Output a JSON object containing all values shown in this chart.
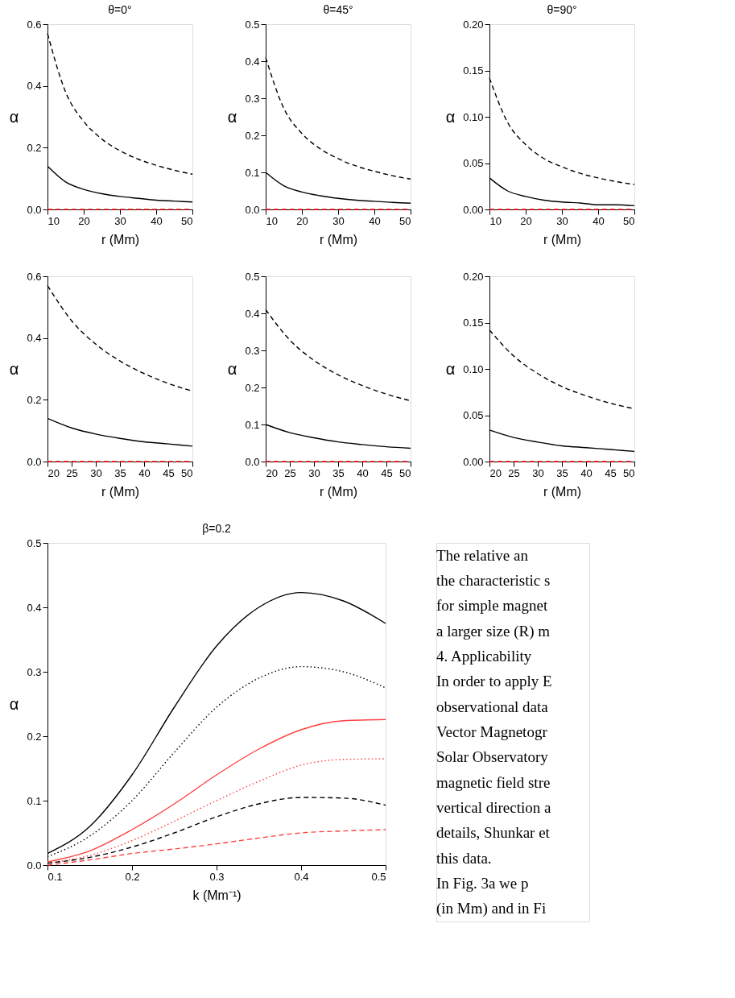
{
  "chart_data": [
    {
      "type": "line",
      "title": "θ=0°",
      "xlabel": "r (Mm)",
      "ylabel": "α",
      "x": [
        10,
        15,
        20,
        25,
        30,
        35,
        40,
        45,
        50
      ],
      "xlim": [
        10,
        50
      ],
      "xticks": [
        10,
        20,
        30,
        40,
        50
      ],
      "ylim": [
        0,
        0.6
      ],
      "yticks": [
        {
          "value": 0,
          "label": "0.0"
        },
        0.2,
        0.4,
        0.6
      ],
      "grid": false,
      "legend": false,
      "series": [
        {
          "color": "#000000",
          "line_style": "dashed",
          "values": [
            0.57,
            0.38,
            0.285,
            0.228,
            0.19,
            0.163,
            0.143,
            0.127,
            0.114
          ]
        },
        {
          "color": "#000000",
          "line_style": "solid",
          "values": [
            0.14,
            0.089,
            0.065,
            0.051,
            0.042,
            0.036,
            0.03,
            0.027,
            0.024
          ]
        },
        {
          "color": "#ff0000",
          "line_style": "dashed",
          "values": [
            0,
            0,
            0,
            0,
            0,
            0,
            0,
            0,
            0
          ]
        }
      ]
    },
    {
      "type": "line",
      "title": "θ=45°",
      "xlabel": "r (Mm)",
      "ylabel": "α",
      "x": [
        10,
        15,
        20,
        25,
        30,
        35,
        40,
        45,
        50
      ],
      "xlim": [
        10,
        50
      ],
      "xticks": [
        10,
        20,
        30,
        40,
        50
      ],
      "ylim": [
        0,
        0.5
      ],
      "yticks": [
        {
          "value": 0,
          "label": "0.0"
        },
        0.1,
        0.2,
        0.3,
        0.4,
        0.5
      ],
      "grid": false,
      "legend": false,
      "series": [
        {
          "color": "#000000",
          "line_style": "dashed",
          "values": [
            0.41,
            0.273,
            0.205,
            0.164,
            0.137,
            0.117,
            0.103,
            0.091,
            0.082
          ]
        },
        {
          "color": "#000000",
          "line_style": "solid",
          "values": [
            0.1,
            0.064,
            0.047,
            0.037,
            0.03,
            0.025,
            0.022,
            0.019,
            0.017
          ]
        },
        {
          "color": "#ff0000",
          "line_style": "dashed",
          "values": [
            0,
            0,
            0,
            0,
            0,
            0,
            0,
            0,
            0
          ]
        }
      ]
    },
    {
      "type": "line",
      "title": "θ=90°",
      "xlabel": "r (Mm)",
      "ylabel": "α",
      "x": [
        10,
        15,
        20,
        25,
        30,
        35,
        40,
        45,
        50
      ],
      "xlim": [
        10,
        50
      ],
      "xticks": [
        10,
        20,
        30,
        40,
        50
      ],
      "ylim": [
        0,
        0.2
      ],
      "yticks": [
        {
          "value": 0,
          "label": "0.00"
        },
        0.05,
        {
          "value": 0.1,
          "label": "0.10"
        },
        0.15,
        {
          "value": 0.2,
          "label": "0.20"
        }
      ],
      "grid": false,
      "legend": false,
      "series": [
        {
          "color": "#000000",
          "line_style": "dashed",
          "values": [
            0.142,
            0.094,
            0.07,
            0.055,
            0.046,
            0.039,
            0.034,
            0.03,
            0.027
          ]
        },
        {
          "color": "#000000",
          "line_style": "solid",
          "values": [
            0.034,
            0.02,
            0.014,
            0.01,
            0.008,
            0.007,
            0.005,
            0.005,
            0.004
          ]
        },
        {
          "color": "#ff0000",
          "line_style": "dashed",
          "values": [
            0,
            0,
            0,
            0,
            0,
            0,
            0,
            0,
            0
          ]
        }
      ]
    },
    {
      "type": "line",
      "xlabel": "r (Mm)",
      "ylabel": "α",
      "x": [
        20,
        25,
        30,
        35,
        40,
        45,
        50
      ],
      "xlim": [
        20,
        50
      ],
      "xticks": [
        20,
        25,
        30,
        35,
        40,
        45,
        50
      ],
      "ylim": [
        0,
        0.6
      ],
      "yticks": [
        {
          "value": 0,
          "label": "0.0"
        },
        0.2,
        0.4,
        0.6
      ],
      "grid": false,
      "legend": false,
      "series": [
        {
          "color": "#000000",
          "line_style": "dashed",
          "values": [
            0.57,
            0.456,
            0.38,
            0.326,
            0.285,
            0.253,
            0.228
          ]
        },
        {
          "color": "#000000",
          "line_style": "solid",
          "values": [
            0.14,
            0.109,
            0.089,
            0.075,
            0.064,
            0.057,
            0.05
          ]
        },
        {
          "color": "#ff0000",
          "line_style": "dashed",
          "values": [
            0,
            0,
            0,
            0,
            0,
            0,
            0
          ]
        }
      ]
    },
    {
      "type": "line",
      "xlabel": "r (Mm)",
      "ylabel": "α",
      "x": [
        20,
        25,
        30,
        35,
        40,
        45,
        50
      ],
      "xlim": [
        20,
        50
      ],
      "xticks": [
        20,
        25,
        30,
        35,
        40,
        45,
        50
      ],
      "ylim": [
        0,
        0.5
      ],
      "yticks": [
        {
          "value": 0,
          "label": "0.0"
        },
        0.1,
        0.2,
        0.3,
        0.4,
        0.5
      ],
      "grid": false,
      "legend": false,
      "series": [
        {
          "color": "#000000",
          "line_style": "dashed",
          "values": [
            0.41,
            0.328,
            0.273,
            0.234,
            0.205,
            0.182,
            0.164
          ]
        },
        {
          "color": "#000000",
          "line_style": "solid",
          "values": [
            0.1,
            0.078,
            0.064,
            0.053,
            0.046,
            0.04,
            0.036
          ]
        },
        {
          "color": "#ff0000",
          "line_style": "dashed",
          "values": [
            0,
            0,
            0,
            0,
            0,
            0,
            0
          ]
        }
      ]
    },
    {
      "type": "line",
      "xlabel": "r (Mm)",
      "ylabel": "α",
      "x": [
        20,
        25,
        30,
        35,
        40,
        45,
        50
      ],
      "xlim": [
        20,
        50
      ],
      "xticks": [
        20,
        25,
        30,
        35,
        40,
        45,
        50
      ],
      "ylim": [
        0,
        0.2
      ],
      "yticks": [
        {
          "value": 0,
          "label": "0.00"
        },
        0.05,
        {
          "value": 0.1,
          "label": "0.10"
        },
        0.15,
        {
          "value": 0.2,
          "label": "0.20"
        }
      ],
      "grid": false,
      "legend": false,
      "series": [
        {
          "color": "#000000",
          "line_style": "dashed",
          "values": [
            0.142,
            0.114,
            0.095,
            0.081,
            0.071,
            0.063,
            0.057
          ]
        },
        {
          "color": "#000000",
          "line_style": "solid",
          "values": [
            0.034,
            0.026,
            0.021,
            0.017,
            0.015,
            0.013,
            0.011
          ]
        },
        {
          "color": "#ff0000",
          "line_style": "dashed",
          "values": [
            0,
            0,
            0,
            0,
            0,
            0,
            0
          ]
        }
      ]
    },
    {
      "type": "line",
      "title": "β=0.2",
      "xlabel": "k (Mm⁻¹)",
      "ylabel": "α",
      "x": [
        0.1,
        0.15,
        0.2,
        0.25,
        0.3,
        0.35,
        0.4,
        0.45,
        0.5
      ],
      "xlim": [
        0.1,
        0.5
      ],
      "xticks": [
        0.1,
        0.2,
        0.3,
        0.4,
        0.5
      ],
      "ylim": [
        0,
        0.5
      ],
      "yticks": [
        {
          "value": 0,
          "label": "0.0"
        },
        0.1,
        0.2,
        0.3,
        0.4,
        0.5
      ],
      "grid": false,
      "legend": false,
      "series": [
        {
          "color": "#000000",
          "line_style": "solid",
          "values": [
            0.018,
            0.06,
            0.14,
            0.245,
            0.34,
            0.4,
            0.423,
            0.41,
            0.375
          ]
        },
        {
          "color": "#000000",
          "line_style": "dotted",
          "values": [
            0.013,
            0.045,
            0.1,
            0.175,
            0.245,
            0.29,
            0.308,
            0.3,
            0.275
          ]
        },
        {
          "color": "#ff4040",
          "line_style": "solid",
          "values": [
            0.005,
            0.022,
            0.055,
            0.095,
            0.14,
            0.18,
            0.21,
            0.224,
            0.226
          ]
        },
        {
          "color": "#ff4040",
          "line_style": "dotted",
          "values": [
            0.003,
            0.015,
            0.038,
            0.068,
            0.1,
            0.13,
            0.155,
            0.164,
            0.165
          ]
        },
        {
          "color": "#000000",
          "line_style": "dashed",
          "values": [
            0.003,
            0.012,
            0.028,
            0.05,
            0.075,
            0.095,
            0.105,
            0.104,
            0.093
          ]
        },
        {
          "color": "#ff4040",
          "line_style": "dashed",
          "values": [
            0.0,
            0.008,
            0.018,
            0.025,
            0.033,
            0.042,
            0.05,
            0.053,
            0.055
          ]
        }
      ]
    },
    {
      "type": "other",
      "annotations": [
        "The relative an",
        "the characteristic s",
        "for simple magnet",
        "a larger size (R) m",
        "4. Applicability",
        "In order to apply E",
        "observational data",
        "Vector Magnetogr",
        "Solar Observatory",
        "magnetic field stre",
        "vertical direction a",
        "details, Shunkar et",
        "this data.",
        "In Fig. 3a we p",
        "(in Mm) and in Fi"
      ]
    }
  ]
}
